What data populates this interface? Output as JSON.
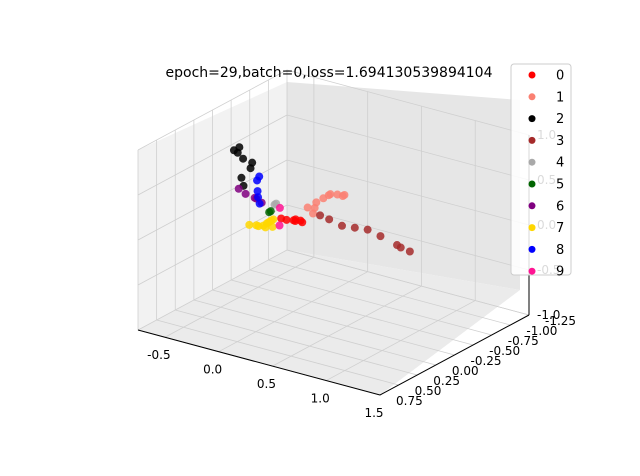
{
  "chart_data": {
    "type": "scatter",
    "projection": "3d",
    "title": "epoch=29,batch=0,loss=1.694130539894104",
    "xlabel": "",
    "ylabel": "",
    "zlabel": "",
    "xlim": [
      -0.75,
      1.5
    ],
    "ylim": [
      -1.25,
      0.75
    ],
    "zlim": [
      -1.0,
      1.0
    ],
    "x_ticks": [
      "-0.5",
      "0.0",
      "0.5",
      "1.0",
      "1.5"
    ],
    "y_ticks": [
      "-1.25",
      "-1.00",
      "-0.75",
      "-0.50",
      "-0.25",
      "0.00",
      "0.25",
      "0.50",
      "0.75"
    ],
    "z_ticks": [
      "-1.0",
      "-0.5",
      "0.0",
      "0.5",
      "1.0"
    ],
    "grid": true,
    "legend_position": "right",
    "series": [
      {
        "name": "0",
        "color": "#ff0000",
        "points": [
          [
            0.25,
            0.2,
            0.3
          ],
          [
            0.35,
            0.25,
            0.35
          ],
          [
            0.45,
            0.3,
            0.4
          ],
          [
            0.3,
            0.15,
            0.3
          ],
          [
            0.4,
            0.3,
            0.38
          ],
          [
            0.5,
            0.35,
            0.42
          ],
          [
            0.2,
            0.2,
            0.3
          ]
        ]
      },
      {
        "name": "1",
        "color": "#fa8072",
        "points": [
          [
            0.55,
            0.35,
            0.6
          ],
          [
            0.7,
            0.45,
            0.75
          ],
          [
            0.85,
            0.5,
            0.9
          ],
          [
            1.0,
            0.6,
            1.0
          ],
          [
            1.1,
            0.65,
            1.05
          ],
          [
            0.65,
            0.4,
            0.65
          ],
          [
            0.9,
            0.55,
            0.95
          ],
          [
            1.05,
            0.6,
            1.0
          ],
          [
            0.6,
            0.35,
            0.55
          ],
          [
            0.8,
            0.5,
            0.85
          ]
        ]
      },
      {
        "name": "2",
        "color": "#000000",
        "points": [
          [
            -0.05,
            0.35,
            0.95
          ],
          [
            -0.1,
            0.4,
            1.05
          ],
          [
            0.0,
            0.3,
            0.9
          ],
          [
            -0.05,
            0.25,
            0.8
          ],
          [
            -0.1,
            0.3,
            0.7
          ],
          [
            -0.15,
            0.2,
            0.55
          ],
          [
            -0.1,
            0.35,
            1.0
          ],
          [
            -0.05,
            0.4,
            1.1
          ]
        ]
      },
      {
        "name": "3",
        "color": "#a52a2a",
        "points": [
          [
            0.3,
            -0.3,
            0.1
          ],
          [
            0.4,
            -0.5,
            -0.05
          ],
          [
            0.5,
            -0.7,
            -0.2
          ],
          [
            0.55,
            -0.85,
            -0.35
          ],
          [
            0.6,
            -0.95,
            -0.45
          ],
          [
            0.45,
            -0.6,
            -0.1
          ],
          [
            0.35,
            -0.4,
            0.0
          ],
          [
            0.55,
            -0.9,
            -0.4
          ],
          [
            0.25,
            -0.25,
            0.15
          ]
        ]
      },
      {
        "name": "4",
        "color": "#a9a9a9",
        "points": [
          [
            0.0,
            0.0,
            0.3
          ],
          [
            0.05,
            0.05,
            0.35
          ]
        ]
      },
      {
        "name": "5",
        "color": "#006400",
        "points": [
          [
            -0.05,
            0.0,
            0.2
          ],
          [
            0.0,
            0.05,
            0.25
          ]
        ]
      },
      {
        "name": "6",
        "color": "#800080",
        "points": [
          [
            -0.2,
            0.1,
            0.4
          ],
          [
            -0.1,
            0.1,
            0.38
          ],
          [
            -0.15,
            0.05,
            0.35
          ],
          [
            -0.05,
            0.1,
            0.35
          ],
          [
            -0.25,
            0.12,
            0.45
          ]
        ]
      },
      {
        "name": "7",
        "color": "#ffd700",
        "points": [
          [
            -0.65,
            -0.6,
            -0.4
          ],
          [
            -0.55,
            -0.55,
            -0.35
          ],
          [
            -0.45,
            -0.5,
            -0.3
          ],
          [
            -0.35,
            -0.4,
            -0.2
          ],
          [
            -0.25,
            -0.3,
            -0.1
          ],
          [
            -0.15,
            -0.2,
            0.0
          ],
          [
            -0.6,
            -0.65,
            -0.42
          ],
          [
            -0.5,
            -0.6,
            -0.38
          ],
          [
            -0.4,
            -0.55,
            -0.32
          ],
          [
            -0.3,
            -0.35,
            -0.15
          ],
          [
            -0.2,
            -0.25,
            -0.05
          ]
        ]
      },
      {
        "name": "8",
        "color": "#0000ff",
        "points": [
          [
            0.05,
            0.3,
            0.6
          ],
          [
            0.08,
            0.35,
            0.75
          ],
          [
            0.02,
            0.25,
            0.5
          ],
          [
            0.0,
            0.2,
            0.4
          ],
          [
            0.1,
            0.35,
            0.8
          ]
        ]
      },
      {
        "name": "9",
        "color": "#ff1493",
        "points": [
          [
            -0.3,
            -0.5,
            -0.25
          ],
          [
            0.05,
            0.0,
            0.28
          ]
        ]
      }
    ]
  }
}
